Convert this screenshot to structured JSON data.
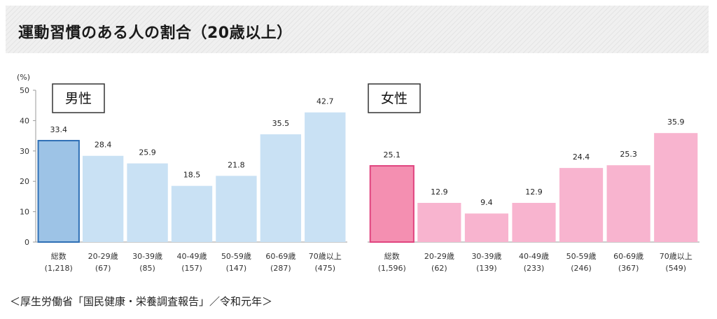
{
  "title": "運動習慣のある人の割合（20歳以上）",
  "source": "＜厚生労働省「国民健康・栄養調査報告」／令和元年＞",
  "chart_data": [
    {
      "type": "bar",
      "panel_label": "男性",
      "y_unit": "(%)",
      "ylim": [
        0,
        50
      ],
      "yticks": [
        0,
        10,
        20,
        30,
        40,
        50
      ],
      "categories": [
        "総数",
        "20-29歳",
        "30-39歳",
        "40-49歳",
        "50-59歳",
        "60-69歳",
        "70歳以上"
      ],
      "sample_sizes": [
        "(1,218)",
        "(67)",
        "(85)",
        "(157)",
        "(147)",
        "(287)",
        "(475)"
      ],
      "values": [
        33.4,
        28.4,
        25.9,
        18.5,
        21.8,
        35.5,
        42.7
      ],
      "value_labels": [
        "33.4",
        "28.4",
        "25.9",
        "18.5",
        "21.8",
        "35.5",
        "42.7"
      ],
      "colors": {
        "highlight_fill": "#9dc3e6",
        "highlight_stroke": "#2e6fb5",
        "fill": "#c9e1f4"
      }
    },
    {
      "type": "bar",
      "panel_label": "女性",
      "ylim": [
        0,
        50
      ],
      "categories": [
        "総数",
        "20-29歳",
        "30-39歳",
        "40-49歳",
        "50-59歳",
        "60-69歳",
        "70歳以上"
      ],
      "sample_sizes": [
        "(1,596)",
        "(62)",
        "(139)",
        "(233)",
        "(246)",
        "(367)",
        "(549)"
      ],
      "values": [
        25.1,
        12.9,
        9.4,
        12.9,
        24.4,
        25.3,
        35.9
      ],
      "value_labels": [
        "25.1",
        "12.9",
        "9.4",
        "12.9",
        "24.4",
        "25.3",
        "35.9"
      ],
      "colors": {
        "highlight_fill": "#f48fb1",
        "highlight_stroke": "#e0447f",
        "fill": "#f8b4cf"
      }
    }
  ]
}
